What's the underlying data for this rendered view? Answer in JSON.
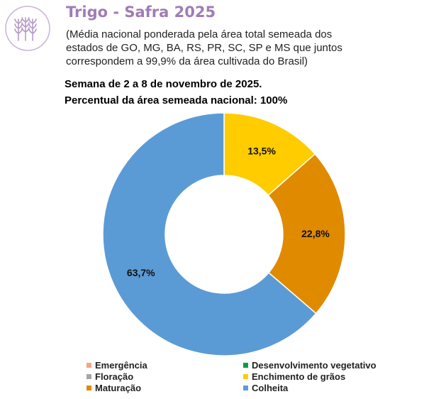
{
  "header": {
    "title": "Trigo - Safra 2025",
    "subtitle_line1": "(Média nacional ponderada pela área total semeada dos",
    "subtitle_line2": "estados de GO, MG, BA, RS, PR, SC, SP e MS que juntos",
    "subtitle_line3": "correspondem a 99,9% da área cultivada do Brasil)",
    "week": "Semana de 2 a 8 de novembro de 2025.",
    "percent_sown": "Percentual da área semeada nacional: 100%",
    "logo_icon": "wheat-icon",
    "logo_color": "#b79ac8"
  },
  "chart_data": {
    "type": "pie",
    "style": "donut",
    "slices": [
      {
        "label": "Enchimento de grãos",
        "value": 13.5,
        "display": "13,5%",
        "color": "#ffcc00"
      },
      {
        "label": "Maturação",
        "value": 22.8,
        "display": "22,8%",
        "color": "#e08a00"
      },
      {
        "label": "Colheita",
        "value": 63.7,
        "display": "63,7%",
        "color": "#5b9bd5"
      }
    ],
    "legend": [
      {
        "label": "Emergência",
        "color": "#f4a582"
      },
      {
        "label": "Desenvolvimento vegetativo",
        "color": "#00a04a"
      },
      {
        "label": "Floração",
        "color": "#a6a6a6"
      },
      {
        "label": "Enchimento de grãos",
        "color": "#ffcc00"
      },
      {
        "label": "Maturação",
        "color": "#e08a00"
      },
      {
        "label": "Colheita",
        "color": "#5b9bd5"
      }
    ],
    "legend_position": "bottom"
  }
}
